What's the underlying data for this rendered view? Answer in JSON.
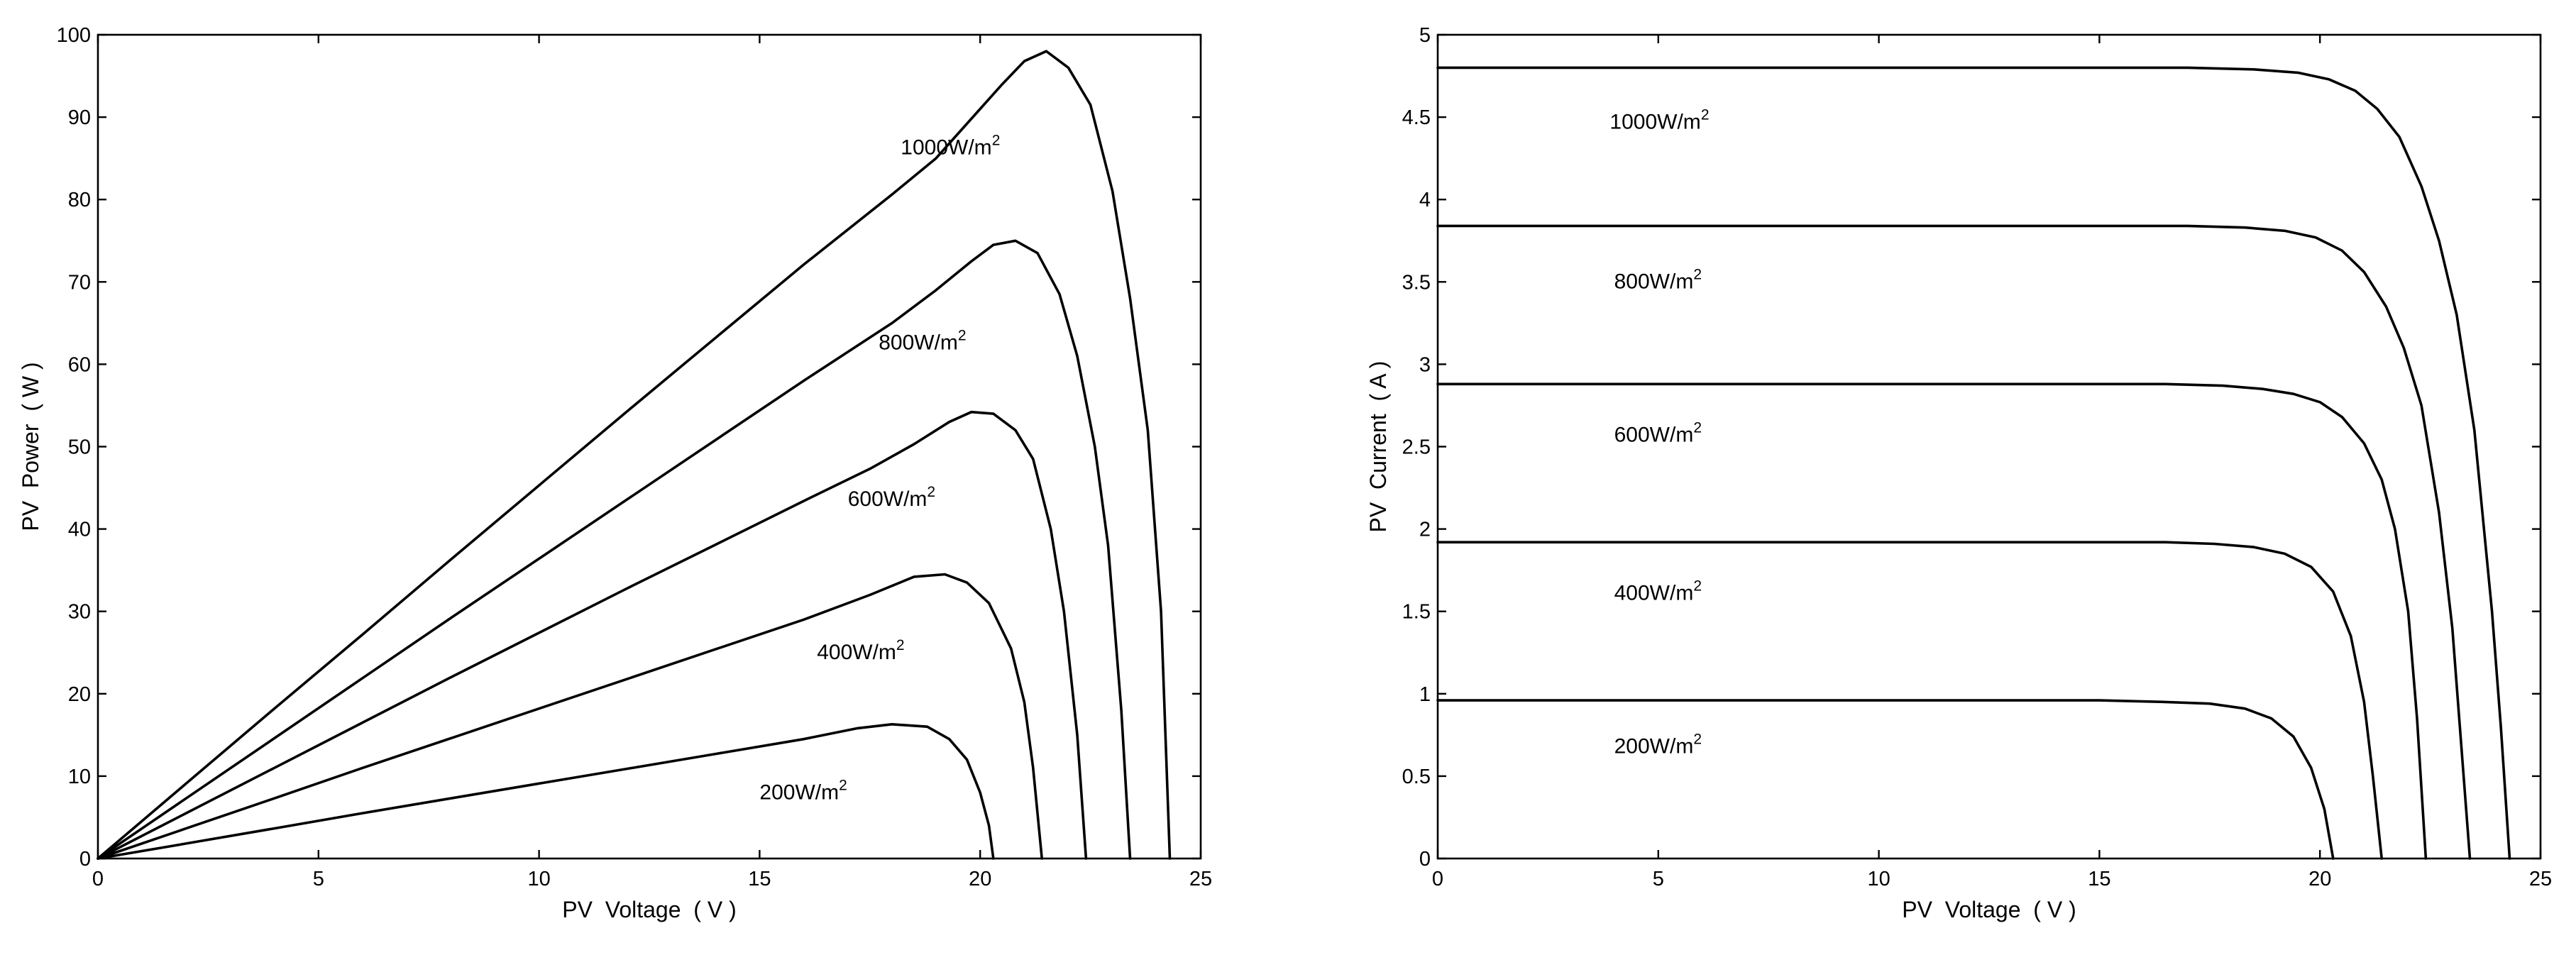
{
  "chart_data": [
    {
      "type": "line",
      "title": "",
      "xlabel": "PV  Voltage  ( V )",
      "ylabel": "PV  Power  ( W )",
      "xlim": [
        0,
        25
      ],
      "ylim": [
        0,
        100
      ],
      "xticks": [
        0,
        5,
        10,
        15,
        20,
        25
      ],
      "yticks": [
        0,
        10,
        20,
        30,
        40,
        50,
        60,
        70,
        80,
        90,
        100
      ],
      "grid": false,
      "legend": "none",
      "series": [
        {
          "label_base": "1000W/m",
          "label_sup": "2",
          "label_at": [
            18.2,
            85.5
          ],
          "x": [
            0,
            2,
            4,
            6,
            8,
            10,
            12,
            14,
            16,
            18,
            19,
            20,
            20.5,
            21,
            21.5,
            22,
            22.5,
            23,
            23.4,
            23.8,
            24.1,
            24.3
          ],
          "y": [
            0,
            9.1,
            18.2,
            27.2,
            36.3,
            45.3,
            54.3,
            63.2,
            72.1,
            80.6,
            85.0,
            91.0,
            94.0,
            96.8,
            98.0,
            96.0,
            91.5,
            81.0,
            68.0,
            52.0,
            30.0,
            0
          ]
        },
        {
          "label_base": "800W/m",
          "label_sup": "2",
          "label_at": [
            17.7,
            61.8
          ],
          "x": [
            0,
            2,
            4,
            6,
            8,
            10,
            12,
            14,
            16,
            18,
            19,
            19.8,
            20.3,
            20.8,
            21.3,
            21.8,
            22.2,
            22.6,
            22.9,
            23.2,
            23.4
          ],
          "y": [
            0,
            7.3,
            14.6,
            21.9,
            29.2,
            36.4,
            43.6,
            50.8,
            58.0,
            65.0,
            69.0,
            72.5,
            74.5,
            75.0,
            73.5,
            68.5,
            61.0,
            50.0,
            38.0,
            18.0,
            0
          ]
        },
        {
          "label_base": "600W/m",
          "label_sup": "2",
          "label_at": [
            17.0,
            42.8
          ],
          "x": [
            0,
            2,
            4,
            6,
            8,
            10,
            12,
            14,
            16,
            17.5,
            18.5,
            19.3,
            19.8,
            20.3,
            20.8,
            21.2,
            21.6,
            21.9,
            22.2,
            22.4
          ],
          "y": [
            0,
            5.5,
            11.0,
            16.5,
            22.0,
            27.4,
            32.8,
            38.1,
            43.4,
            47.3,
            50.3,
            53.0,
            54.2,
            54.0,
            52.0,
            48.5,
            40.0,
            30.0,
            15.0,
            0
          ]
        },
        {
          "label_base": "400W/m",
          "label_sup": "2",
          "label_at": [
            16.3,
            24.2
          ],
          "x": [
            0,
            2,
            4,
            6,
            8,
            10,
            12,
            14,
            16,
            17.5,
            18.5,
            19.2,
            19.7,
            20.2,
            20.7,
            21.0,
            21.2,
            21.4
          ],
          "y": [
            0,
            3.65,
            7.3,
            11.0,
            14.6,
            18.2,
            21.8,
            25.4,
            29.0,
            32.0,
            34.2,
            34.5,
            33.5,
            31.0,
            25.5,
            19.0,
            11.0,
            0
          ]
        },
        {
          "label_base": "200W/m",
          "label_sup": "2",
          "label_at": [
            15.0,
            7.2
          ],
          "x": [
            0,
            2,
            4,
            6,
            8,
            10,
            12,
            14,
            16,
            17.2,
            18.0,
            18.8,
            19.3,
            19.7,
            20.0,
            20.2,
            20.3
          ],
          "y": [
            0,
            1.82,
            3.65,
            5.5,
            7.3,
            9.1,
            10.9,
            12.7,
            14.5,
            15.8,
            16.3,
            16.0,
            14.5,
            12.0,
            8.0,
            4.0,
            0
          ]
        }
      ]
    },
    {
      "type": "line",
      "title": "",
      "xlabel": "PV  Voltage  ( V )",
      "ylabel": "PV  Current  ( A )",
      "xlim": [
        0,
        25
      ],
      "ylim": [
        0,
        5
      ],
      "xticks": [
        0,
        5,
        10,
        15,
        20,
        25
      ],
      "yticks": [
        0,
        0.5,
        1,
        1.5,
        2,
        2.5,
        3,
        3.5,
        4,
        4.5,
        5
      ],
      "grid": false,
      "legend": "none",
      "series": [
        {
          "label_base": "1000W/m",
          "label_sup": "2",
          "label_at": [
            3.9,
            4.43
          ],
          "x": [
            0,
            5,
            10,
            15,
            17,
            18.5,
            19.5,
            20.2,
            20.8,
            21.3,
            21.8,
            22.3,
            22.7,
            23.1,
            23.5,
            23.9,
            24.1,
            24.3
          ],
          "y": [
            4.8,
            4.8,
            4.8,
            4.8,
            4.8,
            4.79,
            4.77,
            4.73,
            4.66,
            4.55,
            4.38,
            4.08,
            3.75,
            3.3,
            2.6,
            1.5,
            0.8,
            0
          ]
        },
        {
          "label_base": "800W/m",
          "label_sup": "2",
          "label_at": [
            4.0,
            3.46
          ],
          "x": [
            0,
            5,
            10,
            15,
            17,
            18.3,
            19.2,
            19.9,
            20.5,
            21.0,
            21.5,
            21.9,
            22.3,
            22.7,
            23.0,
            23.2,
            23.4
          ],
          "y": [
            3.84,
            3.84,
            3.84,
            3.84,
            3.84,
            3.83,
            3.81,
            3.77,
            3.69,
            3.56,
            3.35,
            3.1,
            2.75,
            2.1,
            1.4,
            0.7,
            0
          ]
        },
        {
          "label_base": "600W/m",
          "label_sup": "2",
          "label_at": [
            4.0,
            2.53
          ],
          "x": [
            0,
            5,
            10,
            15,
            16.5,
            17.8,
            18.7,
            19.4,
            20.0,
            20.5,
            21.0,
            21.4,
            21.7,
            22.0,
            22.2,
            22.4
          ],
          "y": [
            2.88,
            2.88,
            2.88,
            2.88,
            2.88,
            2.87,
            2.85,
            2.82,
            2.77,
            2.68,
            2.52,
            2.3,
            2.0,
            1.5,
            0.85,
            0
          ]
        },
        {
          "label_base": "400W/m",
          "label_sup": "2",
          "label_at": [
            4.0,
            1.57
          ],
          "x": [
            0,
            5,
            10,
            15,
            16.5,
            17.6,
            18.5,
            19.2,
            19.8,
            20.3,
            20.7,
            21.0,
            21.2,
            21.4
          ],
          "y": [
            1.92,
            1.92,
            1.92,
            1.92,
            1.92,
            1.91,
            1.89,
            1.85,
            1.77,
            1.62,
            1.35,
            0.95,
            0.5,
            0
          ]
        },
        {
          "label_base": "200W/m",
          "label_sup": "2",
          "label_at": [
            4.0,
            0.64
          ],
          "x": [
            0,
            5,
            10,
            15,
            16.5,
            17.5,
            18.3,
            18.9,
            19.4,
            19.8,
            20.1,
            20.3
          ],
          "y": [
            0.96,
            0.96,
            0.96,
            0.96,
            0.95,
            0.94,
            0.91,
            0.85,
            0.74,
            0.55,
            0.3,
            0
          ]
        }
      ]
    }
  ]
}
